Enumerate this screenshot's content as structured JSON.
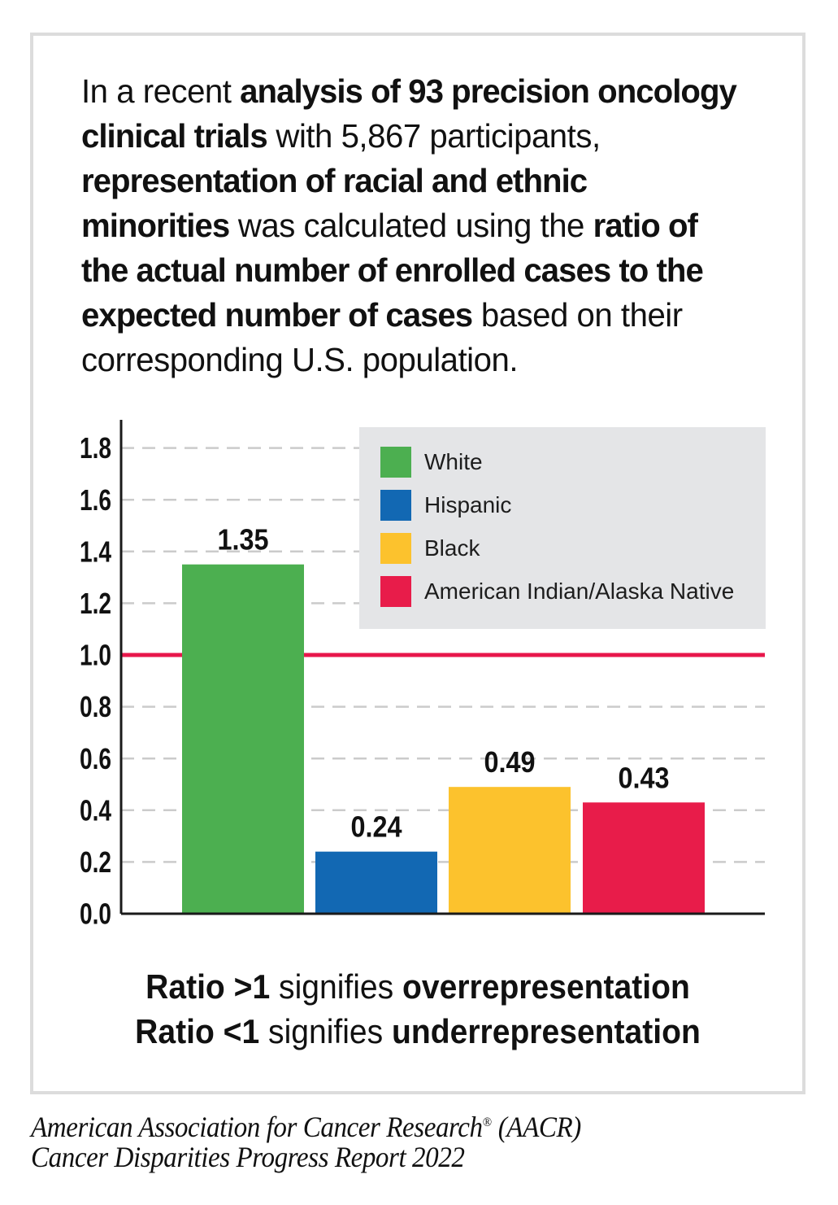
{
  "intro": {
    "lines": [
      [
        {
          "t": "In a recent ",
          "b": false
        },
        {
          "t": "analysis of 93 precision oncology",
          "b": true
        }
      ],
      [
        {
          "t": "clinical trials",
          "b": true
        },
        {
          "t": " with 5,867 participants,",
          "b": false
        }
      ],
      [
        {
          "t": "representation of racial and ethnic",
          "b": true
        }
      ],
      [
        {
          "t": "minorities",
          "b": true
        },
        {
          "t": " was calculated using the ",
          "b": false
        },
        {
          "t": "ratio of",
          "b": true
        }
      ],
      [
        {
          "t": "the actual number of enrolled cases to the",
          "b": true
        }
      ],
      [
        {
          "t": "expected number of cases",
          "b": true
        },
        {
          "t": " based on their",
          "b": false
        }
      ],
      [
        {
          "t": "corresponding U.S. population.",
          "b": false
        }
      ]
    ]
  },
  "chart_data": {
    "type": "bar",
    "categories": [
      "White",
      "Hispanic",
      "Black",
      "American Indian/Alaska Native"
    ],
    "values": [
      1.35,
      0.24,
      0.49,
      0.43
    ],
    "value_labels": [
      "1.35",
      "0.24",
      "0.49",
      "0.43"
    ],
    "colors": [
      "#4CAF50",
      "#1268B3",
      "#FCC22D",
      "#E81C4A"
    ],
    "title": "",
    "xlabel": "",
    "ylabel": "",
    "ylim": [
      0,
      1.9
    ],
    "yticks": [
      "0.0",
      "0.2",
      "0.4",
      "0.6",
      "0.8",
      "1.0",
      "1.2",
      "1.4",
      "1.6",
      "1.8"
    ],
    "reference_line": {
      "value": 1.0,
      "color": "#E8174B"
    },
    "grid": "dashed horizontal gridlines",
    "legend_position": "upper right"
  },
  "legend": {
    "items": [
      {
        "label": "White",
        "color": "#4CAF50"
      },
      {
        "label": "Hispanic",
        "color": "#1268B3"
      },
      {
        "label": "Black",
        "color": "#FCC22D"
      },
      {
        "label": "American Indian/Alaska Native",
        "color": "#E81C4A"
      }
    ]
  },
  "caption": {
    "lines": [
      [
        {
          "t": "Ratio >1",
          "b": true
        },
        {
          "t": " signifies ",
          "b": false
        },
        {
          "t": "overrepresentation",
          "b": true
        }
      ],
      [
        {
          "t": "Ratio <1",
          "b": true
        },
        {
          "t": " signifies ",
          "b": false
        },
        {
          "t": "underrepresentation",
          "b": true
        }
      ]
    ]
  },
  "footer": {
    "line1_main": "American Association for Cancer Research",
    "registered_mark": "®",
    "line1_suffix": " (AACR)",
    "line2": "Cancer Disparities Progress Report 2022"
  }
}
